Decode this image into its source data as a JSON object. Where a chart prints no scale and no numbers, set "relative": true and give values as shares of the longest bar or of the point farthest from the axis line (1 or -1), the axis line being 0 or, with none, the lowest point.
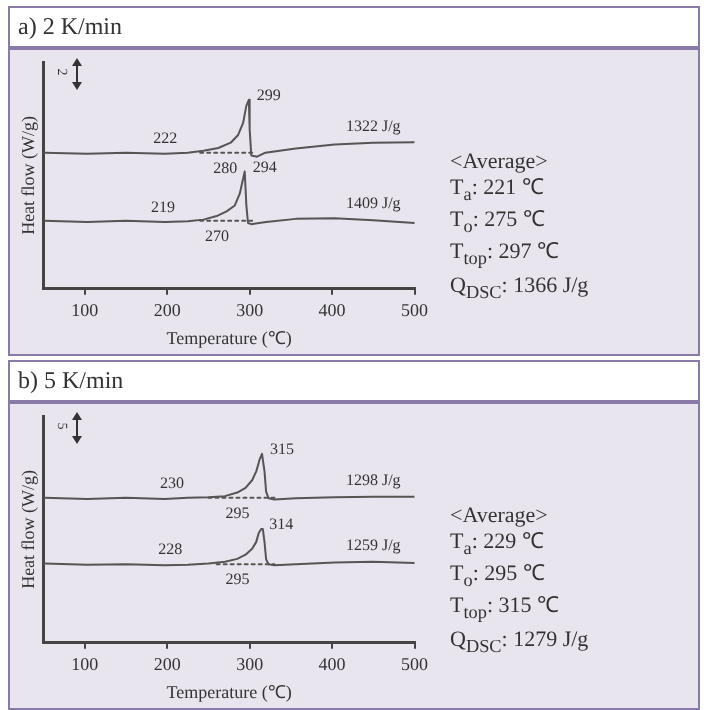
{
  "chart_data": [
    {
      "type": "line",
      "title": "a) 2 K/min",
      "xlabel": "Temperature (℃)",
      "ylabel": "Heat flow (W/g)",
      "relative": true,
      "tick_labels": "x",
      "grid": false,
      "legend": false,
      "marker": "none",
      "xlim": [
        50,
        500
      ],
      "xticks": [
        100,
        200,
        300,
        400,
        500
      ],
      "series": [
        {
          "color": "#555555",
          "line_style": "solid",
          "x": [
            51,
            103,
            150,
            197,
            225,
            244,
            262,
            277,
            286,
            292,
            296,
            299,
            300,
            302,
            309,
            319,
            356,
            403,
            450,
            500
          ],
          "values": [
            0.72,
            0.714,
            0.72,
            0.714,
            0.72,
            0.73,
            0.745,
            0.773,
            0.814,
            0.876,
            0.969,
            1,
            0.845,
            0.705,
            0.699,
            0.72,
            0.742,
            0.764,
            0.773,
            0.776
          ]
        },
        {
          "color": "#555555",
          "line_style": "solid",
          "x": [
            51,
            103,
            150,
            197,
            225,
            244,
            260,
            272,
            282,
            288,
            294,
            296,
            298,
            302,
            320,
            356,
            403,
            450,
            500
          ],
          "values": [
            0.36,
            0.354,
            0.36,
            0.354,
            0.357,
            0.366,
            0.385,
            0.41,
            0.441,
            0.503,
            0.621,
            0.441,
            0.348,
            0.342,
            0.354,
            0.37,
            0.373,
            0.363,
            0.348
          ]
        },
        {
          "color": "#555555",
          "line_style": "dotted",
          "x": [
            240,
            305
          ],
          "values": [
            0.72,
            0.72
          ]
        },
        {
          "color": "#555555",
          "line_style": "dotted",
          "x": [
            240,
            305
          ],
          "values": [
            0.36,
            0.36
          ]
        }
      ],
      "annotations": [
        {
          "text": "299",
          "x": 299,
          "y": 1
        },
        {
          "text": "222",
          "x": 222,
          "y": 0.72
        },
        {
          "text": "280",
          "x": 280,
          "y": 0.72
        },
        {
          "text": "1322 J/g",
          "x": 450,
          "y": 0.773
        },
        {
          "text": "294",
          "x": 294,
          "y": 0.621
        },
        {
          "text": "219",
          "x": 219,
          "y": 0.357
        },
        {
          "text": "270",
          "x": 270,
          "y": 0.36
        },
        {
          "text": "1409 J/g",
          "x": 450,
          "y": 0.363
        },
        "2",
        "<Average>",
        "T$_{a}$: 221 ℃",
        "T$_{o}$: 275 ℃",
        "T$_{top}$: 297 ℃",
        "Q$_{DSC}$: 1366 J/g"
      ]
    },
    {
      "type": "line",
      "title": "b) 5 K/min",
      "xlabel": "Temperature (℃)",
      "ylabel": "Heat flow (W/g)",
      "relative": true,
      "tick_labels": "x",
      "grid": false,
      "legend": false,
      "marker": "none",
      "xlim": [
        50,
        500
      ],
      "xticks": [
        100,
        200,
        300,
        400,
        500
      ],
      "series": [
        {
          "color": "#555555",
          "line_style": "solid",
          "x": [
            51,
            103,
            150,
            197,
            225,
            250,
            270,
            285,
            295,
            303,
            308,
            312,
            315,
            318,
            320,
            323,
            330,
            356,
            403,
            450,
            500
          ],
          "values": [
            0.767,
            0.761,
            0.767,
            0.761,
            0.767,
            0.77,
            0.776,
            0.795,
            0.82,
            0.86,
            0.907,
            0.969,
            1,
            0.907,
            0.798,
            0.765,
            0.758,
            0.765,
            0.77,
            0.773,
            0.773
          ]
        },
        {
          "color": "#555555",
          "line_style": "solid",
          "x": [
            51,
            103,
            150,
            197,
            225,
            250,
            270,
            285,
            295,
            303,
            308,
            311,
            314,
            316,
            318,
            320,
            323,
            330,
            356,
            403,
            450,
            500
          ],
          "values": [
            0.419,
            0.413,
            0.416,
            0.41,
            0.413,
            0.419,
            0.429,
            0.444,
            0.466,
            0.497,
            0.534,
            0.581,
            0.602,
            0.602,
            0.534,
            0.441,
            0.416,
            0.41,
            0.416,
            0.425,
            0.429,
            0.422
          ]
        },
        {
          "color": "#555555",
          "line_style": "dotted",
          "x": [
            250,
            330
          ],
          "values": [
            0.767,
            0.767
          ]
        },
        {
          "color": "#555555",
          "line_style": "dotted",
          "x": [
            260,
            330
          ],
          "values": [
            0.416,
            0.416
          ]
        }
      ],
      "annotations": [
        {
          "text": "315",
          "x": 315,
          "y": 1
        },
        {
          "text": "230",
          "x": 230,
          "y": 0.767
        },
        {
          "text": "295",
          "x": 295,
          "y": 0.767
        },
        {
          "text": "1298 J/g",
          "x": 450,
          "y": 0.773
        },
        {
          "text": "314",
          "x": 314,
          "y": 0.602
        },
        {
          "text": "228",
          "x": 228,
          "y": 0.416
        },
        {
          "text": "295",
          "x": 295,
          "y": 0.416
        },
        {
          "text": "1259 J/g",
          "x": 450,
          "y": 0.429
        },
        "5",
        "<Average>",
        "T$_{a}$: 229 ℃",
        "T$_{o}$: 295 ℃",
        "T$_{top}$: 315 ℃",
        "Q$_{DSC}$: 1279 J/g"
      ]
    }
  ]
}
